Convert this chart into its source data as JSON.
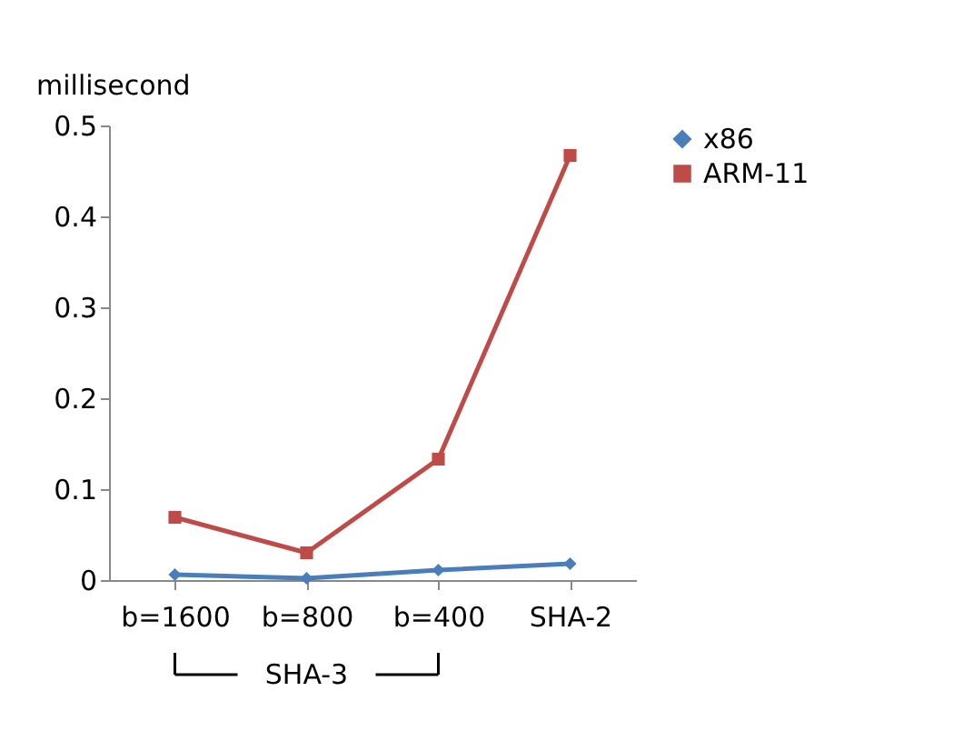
{
  "chart_data": {
    "type": "line",
    "ylabel": "millisecond",
    "categories": [
      "b=1600",
      "b=800",
      "b=400",
      "SHA-2"
    ],
    "series": [
      {
        "name": "x86",
        "color": "#4a7ebb",
        "marker": "diamond",
        "values": [
          0.006,
          0.002,
          0.011,
          0.018
        ]
      },
      {
        "name": "ARM-11",
        "color": "#be4b48",
        "marker": "square",
        "values": [
          0.069,
          0.03,
          0.133,
          0.467
        ]
      }
    ],
    "ylim": [
      0,
      0.5
    ],
    "yticks": [
      0,
      0.1,
      0.2,
      0.3,
      0.4,
      0.5
    ],
    "grid": false,
    "legend": "right",
    "annotations": [
      "SHA-3"
    ]
  }
}
